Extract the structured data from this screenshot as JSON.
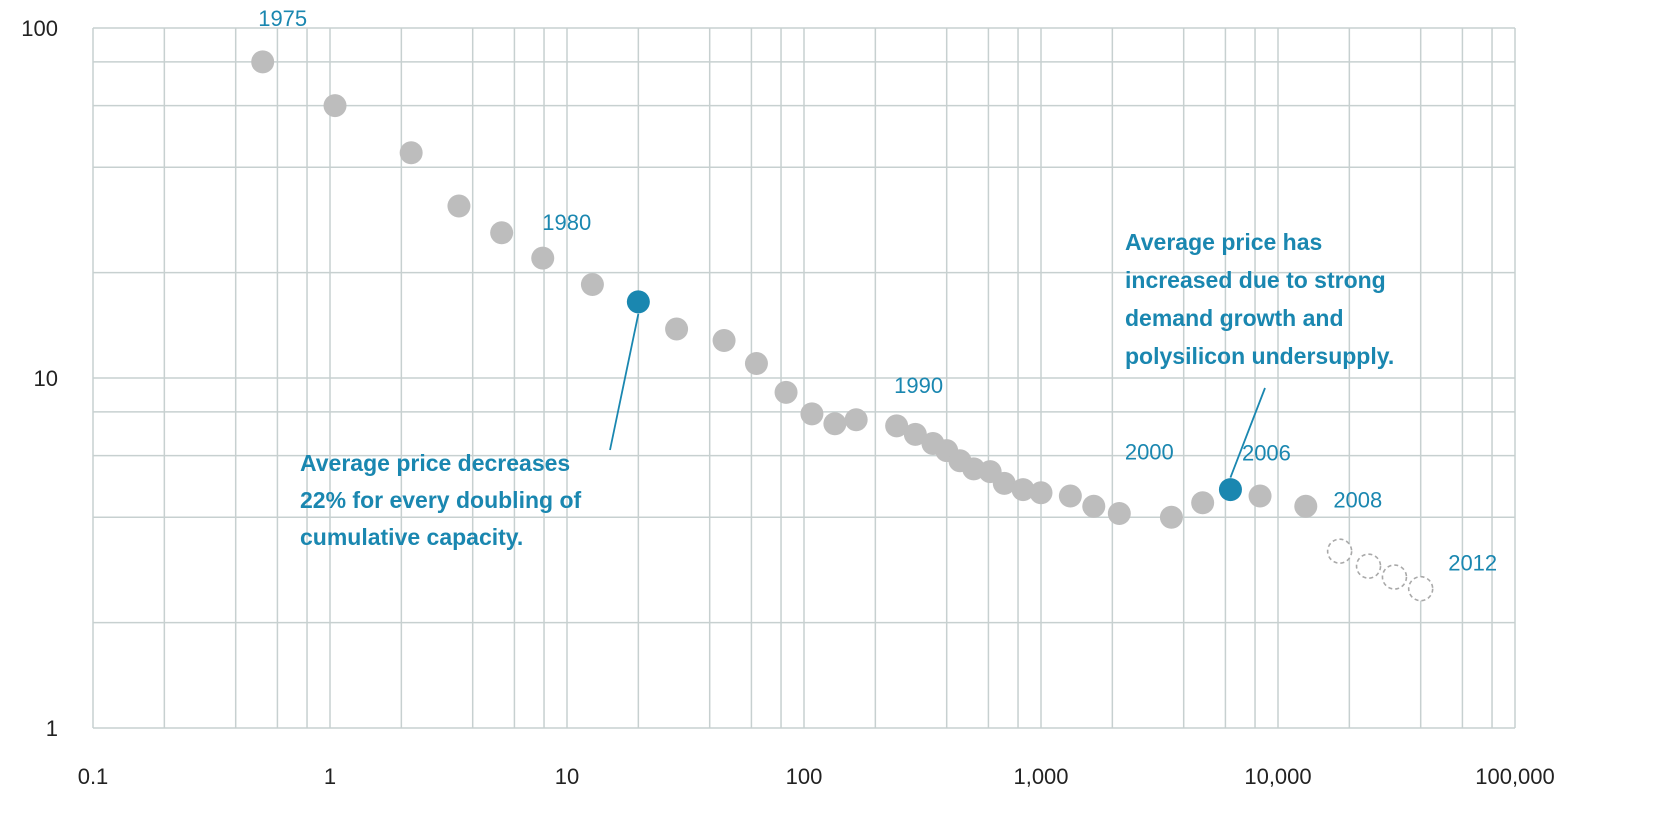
{
  "chart_data": {
    "type": "scatter",
    "x_scale": "log",
    "y_scale": "log",
    "xlim": [
      0.1,
      100000
    ],
    "ylim": [
      1,
      100
    ],
    "grid": true,
    "x_ticks": [
      {
        "value": 0.1,
        "label": "0.1"
      },
      {
        "value": 1,
        "label": "1"
      },
      {
        "value": 10,
        "label": "10"
      },
      {
        "value": 100,
        "label": "100"
      },
      {
        "value": 1000,
        "label": "1,000"
      },
      {
        "value": 10000,
        "label": "10,000"
      },
      {
        "value": 100000,
        "label": "100,000"
      }
    ],
    "y_ticks": [
      {
        "value": 1,
        "label": "1"
      },
      {
        "value": 10,
        "label": "10"
      },
      {
        "value": 100,
        "label": "100"
      }
    ],
    "points": [
      {
        "x": 0.52,
        "y": 80,
        "style": "actual"
      },
      {
        "x": 1.05,
        "y": 60,
        "style": "actual"
      },
      {
        "x": 2.2,
        "y": 44,
        "style": "actual"
      },
      {
        "x": 3.5,
        "y": 31,
        "style": "actual"
      },
      {
        "x": 5.3,
        "y": 26,
        "style": "actual"
      },
      {
        "x": 7.9,
        "y": 22,
        "style": "actual"
      },
      {
        "x": 12.8,
        "y": 18.5,
        "style": "actual"
      },
      {
        "x": 20,
        "y": 16.5,
        "style": "highlight"
      },
      {
        "x": 29,
        "y": 13.8,
        "style": "actual"
      },
      {
        "x": 46,
        "y": 12.8,
        "style": "actual"
      },
      {
        "x": 63,
        "y": 11,
        "style": "actual"
      },
      {
        "x": 84,
        "y": 9.1,
        "style": "actual"
      },
      {
        "x": 108,
        "y": 7.9,
        "style": "actual"
      },
      {
        "x": 135,
        "y": 7.4,
        "style": "actual"
      },
      {
        "x": 166,
        "y": 7.6,
        "style": "actual"
      },
      {
        "x": 246,
        "y": 7.3,
        "style": "actual"
      },
      {
        "x": 295,
        "y": 6.9,
        "style": "actual"
      },
      {
        "x": 350,
        "y": 6.5,
        "style": "actual"
      },
      {
        "x": 400,
        "y": 6.2,
        "style": "actual"
      },
      {
        "x": 455,
        "y": 5.8,
        "style": "actual"
      },
      {
        "x": 520,
        "y": 5.5,
        "style": "actual"
      },
      {
        "x": 610,
        "y": 5.4,
        "style": "actual"
      },
      {
        "x": 700,
        "y": 5.0,
        "style": "actual"
      },
      {
        "x": 840,
        "y": 4.8,
        "style": "actual"
      },
      {
        "x": 1000,
        "y": 4.7,
        "style": "actual"
      },
      {
        "x": 1330,
        "y": 4.6,
        "style": "actual"
      },
      {
        "x": 1670,
        "y": 4.3,
        "style": "actual"
      },
      {
        "x": 2140,
        "y": 4.1,
        "style": "actual"
      },
      {
        "x": 3550,
        "y": 4.0,
        "style": "actual"
      },
      {
        "x": 4810,
        "y": 4.4,
        "style": "actual"
      },
      {
        "x": 6300,
        "y": 4.8,
        "style": "highlight"
      },
      {
        "x": 8400,
        "y": 4.6,
        "style": "actual"
      },
      {
        "x": 13100,
        "y": 4.3,
        "style": "actual"
      },
      {
        "x": 18200,
        "y": 3.2,
        "style": "projected"
      },
      {
        "x": 24100,
        "y": 2.9,
        "style": "projected"
      },
      {
        "x": 31000,
        "y": 2.7,
        "style": "projected"
      },
      {
        "x": 40000,
        "y": 2.5,
        "style": "projected"
      }
    ],
    "year_labels": [
      {
        "text": "1975",
        "x": 0.52,
        "y": 80
      },
      {
        "text": "1980",
        "x": 7.9,
        "y": 22
      },
      {
        "text": "1990",
        "x": 246,
        "y": 7.3
      },
      {
        "text": "2000",
        "x": 2140,
        "y": 4.1
      },
      {
        "text": "2006",
        "x": 6300,
        "y": 4.8
      },
      {
        "text": "2008",
        "x": 13100,
        "y": 4.3
      },
      {
        "text": "2012",
        "x": 40000,
        "y": 2.5
      }
    ],
    "annotations": [
      {
        "lines": [
          "Average price decreases",
          "22% for every doubling of",
          "cumulative capacity."
        ],
        "target": {
          "x": 20,
          "y": 16.5
        }
      },
      {
        "lines": [
          "Average price has",
          "increased due to strong",
          "demand growth and",
          "polysilicon undersupply."
        ],
        "target": {
          "x": 6300,
          "y": 4.8
        }
      }
    ],
    "colors": {
      "actual": "#bdbdbd",
      "highlight": "#1a87b0",
      "projected_stroke": "#a9a9a9",
      "grid": "#c7d0d0",
      "label": "#1a87b0"
    }
  }
}
